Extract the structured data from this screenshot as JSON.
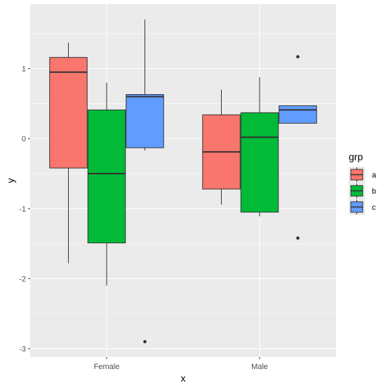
{
  "chart_data": {
    "type": "boxplot",
    "xlabel": "x",
    "ylabel": "y",
    "categories": [
      "Female",
      "Male"
    ],
    "y_ticks": [
      -3,
      -2,
      -1,
      0,
      1
    ],
    "y_tick_labels": [
      "-3",
      "-2",
      "-1",
      "0",
      "1"
    ],
    "ylim": [
      -3.12,
      1.92
    ],
    "legend_title": "grp",
    "legend_position": "right",
    "grid": true,
    "colors": {
      "panel": "#ebebeb",
      "grid": "#ffffff",
      "outline": "#333333"
    },
    "series": [
      {
        "name": "a",
        "color": "#F8766D",
        "boxes": [
          {
            "category": "Female",
            "whisker_low": -1.78,
            "q1": -0.42,
            "median": 0.95,
            "q3": 1.16,
            "whisker_high": 1.37,
            "outliers": []
          },
          {
            "category": "Male",
            "whisker_low": -0.94,
            "q1": -0.72,
            "median": -0.19,
            "q3": 0.34,
            "whisker_high": 0.7,
            "outliers": []
          }
        ]
      },
      {
        "name": "b",
        "color": "#00BA38",
        "boxes": [
          {
            "category": "Female",
            "whisker_low": -2.1,
            "q1": -1.49,
            "median": -0.5,
            "q3": 0.41,
            "whisker_high": 0.8,
            "outliers": []
          },
          {
            "category": "Male",
            "whisker_low": -1.11,
            "q1": -1.05,
            "median": 0.02,
            "q3": 0.37,
            "whisker_high": 0.88,
            "outliers": []
          }
        ]
      },
      {
        "name": "c",
        "color": "#619CFF",
        "boxes": [
          {
            "category": "Female",
            "whisker_low": -0.17,
            "q1": -0.13,
            "median": 0.6,
            "q3": 0.63,
            "whisker_high": 1.7,
            "outliers": [
              -2.9
            ]
          },
          {
            "category": "Male",
            "whisker_low": 0.22,
            "q1": 0.22,
            "median": 0.41,
            "q3": 0.47,
            "whisker_high": 0.47,
            "outliers": [
              1.17,
              -1.42
            ]
          }
        ]
      }
    ]
  }
}
